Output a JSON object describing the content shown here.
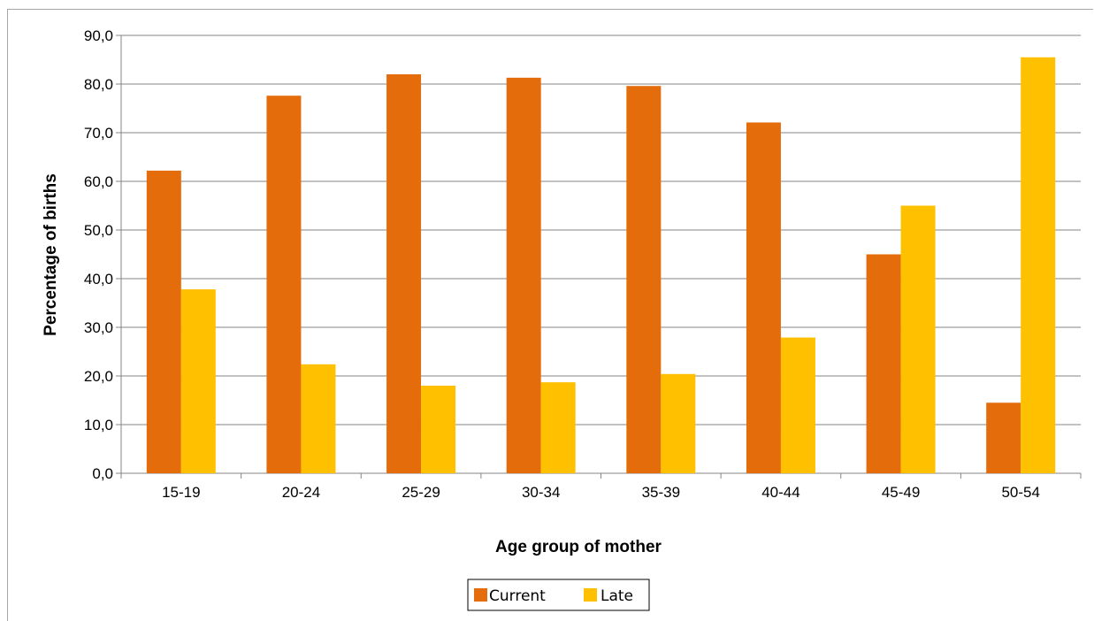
{
  "chart_data": {
    "type": "bar",
    "categories": [
      "15-19",
      "20-24",
      "25-29",
      "30-34",
      "35-39",
      "40-44",
      "45-49",
      "50-54"
    ],
    "series": [
      {
        "name": "Current",
        "values": [
          62.2,
          77.6,
          82.0,
          81.3,
          79.6,
          72.1,
          45.0,
          14.5
        ],
        "color": "#e46c0a"
      },
      {
        "name": "Late",
        "values": [
          37.8,
          22.4,
          18.0,
          18.7,
          20.4,
          27.9,
          55.0,
          85.5
        ],
        "color": "#ffc000"
      }
    ],
    "title": "",
    "xlabel": "Age group of mother",
    "ylabel": "Percentage  of births",
    "ylim": [
      0,
      90
    ],
    "yticks": [
      "0,0",
      "10,0",
      "20,0",
      "30,0",
      "40,0",
      "50,0",
      "60,0",
      "70,0",
      "80,0",
      "90,0"
    ],
    "grid": true,
    "legend_position": "bottom"
  }
}
